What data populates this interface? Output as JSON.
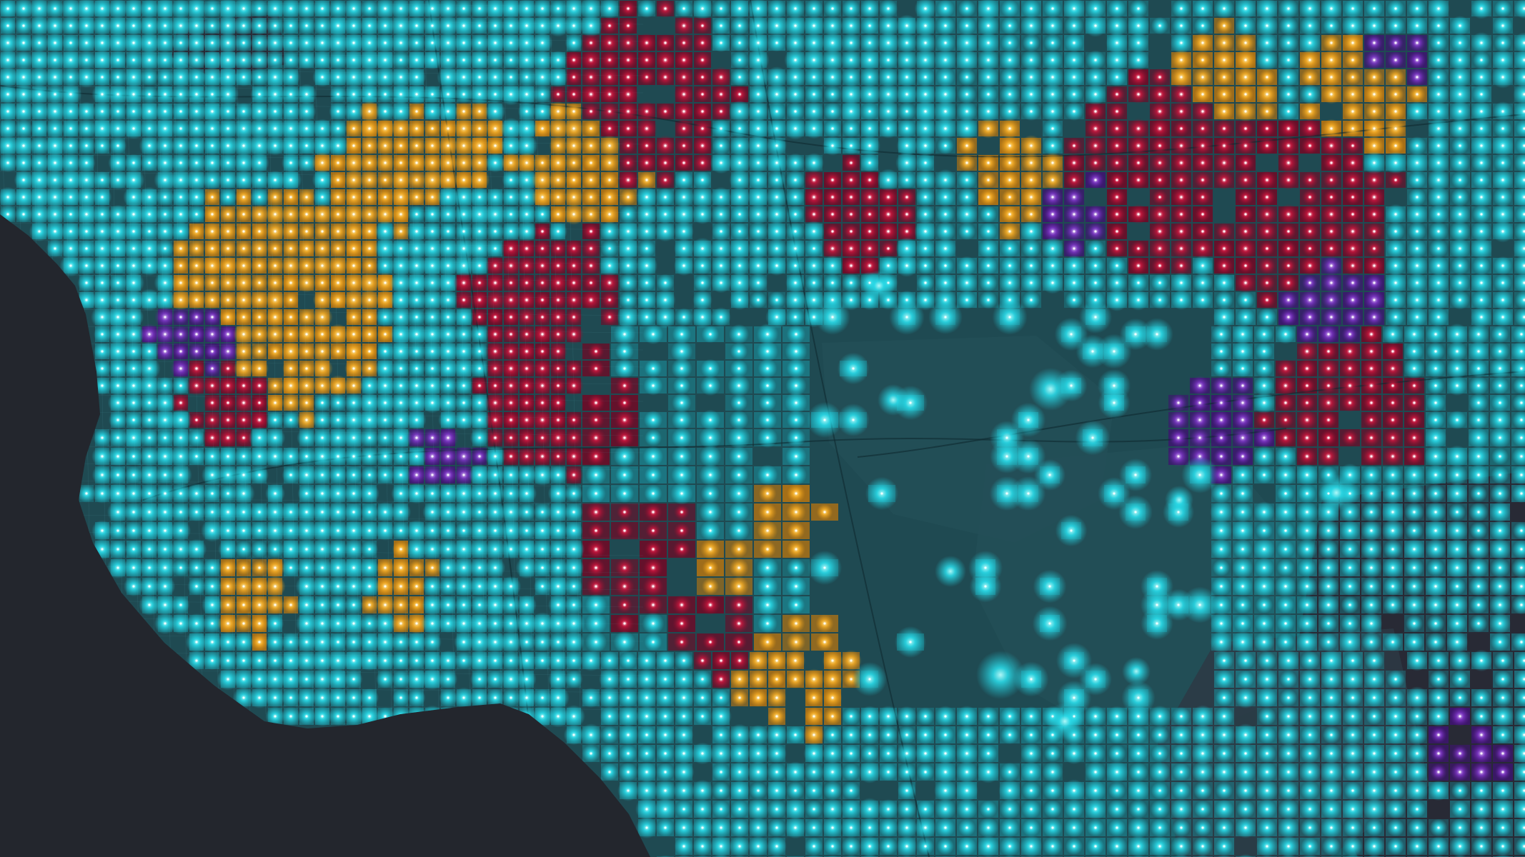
{
  "map": {
    "style": "dark",
    "colors": {
      "ocean": "#23262d",
      "land": "#1f4a52",
      "land_alt": "#234f57",
      "terrain_dark": "#2a2430",
      "grid_line": "#5fb7c4",
      "road_line": "#0f2a30"
    },
    "layers": [
      {
        "name": "teal-points-layer",
        "color": "#1fc7d6",
        "glow": "#2be0ee"
      },
      {
        "name": "amber-zones-layer",
        "color": "#e2950f",
        "glow": "#ffb52a"
      },
      {
        "name": "crimson-zones-layer",
        "color": "#8d0c2c",
        "glow": "#d2173f"
      },
      {
        "name": "violet-zones-layer",
        "color": "#5b1a9a",
        "glow": "#8a3cd6"
      }
    ]
  }
}
